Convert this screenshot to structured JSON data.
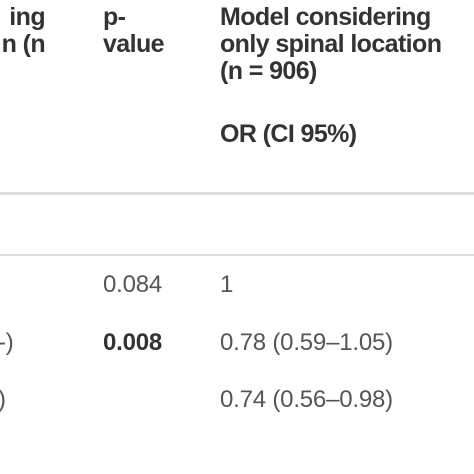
{
  "table": {
    "header": {
      "col1": [
        "ing",
        "n (n"
      ],
      "col2": [
        "p-",
        "value"
      ],
      "col3": [
        "Model considering",
        "only spinal location",
        "(n = 906)"
      ],
      "col3_sub": "OR (CI 95%)"
    },
    "rows": [
      {
        "p": "0.084",
        "or": "1"
      },
      {
        "label": "-)",
        "p": "0.008",
        "or": "0.78 (0.59–1.05)"
      },
      {
        "label": ")",
        "or": "0.74 (0.56–0.98)"
      }
    ]
  }
}
